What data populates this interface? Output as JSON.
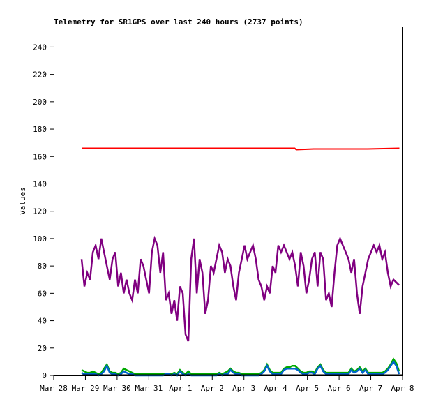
{
  "chart_data": {
    "type": "line",
    "title": "Telemetry for SR1GPS over last 240 hours (2737 points)",
    "xlabel": "",
    "ylabel": "Values",
    "ylim": [
      0,
      255
    ],
    "xlim_days": [
      0,
      11
    ],
    "x_unit": "days since Mar 28 00:00",
    "x_ticks": [
      {
        "day": 0,
        "label": "Mar 28"
      },
      {
        "day": 1,
        "label": "Mar 29"
      },
      {
        "day": 2,
        "label": "Mar 30"
      },
      {
        "day": 3,
        "label": "Mar 31"
      },
      {
        "day": 4,
        "label": "Apr 1"
      },
      {
        "day": 5,
        "label": "Apr 2"
      },
      {
        "day": 6,
        "label": "Apr 3"
      },
      {
        "day": 7,
        "label": "Apr 4"
      },
      {
        "day": 8,
        "label": "Apr 5"
      },
      {
        "day": 9,
        "label": "Apr 6"
      },
      {
        "day": 10,
        "label": "Apr 7"
      },
      {
        "day": 11,
        "label": "Apr 8"
      }
    ],
    "y_ticks": [
      0,
      20,
      40,
      60,
      80,
      100,
      120,
      140,
      160,
      180,
      200,
      220,
      240
    ],
    "grid": false,
    "sample_start_day": 0.88,
    "sample_step_day": 0.0886,
    "series": [
      {
        "name": "red",
        "color": "#ff0000",
        "points": [
          [
            0.88,
            166
          ],
          [
            7.6,
            166
          ],
          [
            7.65,
            165
          ],
          [
            8.2,
            165.5
          ],
          [
            9.9,
            165.5
          ],
          [
            10.9,
            166
          ]
        ]
      },
      {
        "name": "purple",
        "color": "#800080",
        "values": [
          85,
          65,
          75,
          70,
          90,
          95,
          85,
          100,
          90,
          80,
          70,
          85,
          90,
          65,
          75,
          60,
          70,
          60,
          55,
          70,
          60,
          85,
          80,
          70,
          60,
          90,
          100,
          95,
          75,
          90,
          55,
          60,
          45,
          55,
          40,
          65,
          60,
          30,
          25,
          85,
          100,
          60,
          85,
          75,
          45,
          55,
          80,
          75,
          85,
          95,
          90,
          75,
          85,
          80,
          65,
          55,
          75,
          85,
          95,
          85,
          90,
          95,
          85,
          70,
          65,
          55,
          65,
          60,
          80,
          75,
          95,
          90,
          95,
          90,
          85,
          90,
          80,
          65,
          90,
          80,
          60,
          70,
          85,
          90,
          65,
          90,
          85,
          55,
          60,
          50,
          75,
          95,
          100,
          95,
          90,
          85,
          75,
          85,
          60,
          45,
          65,
          75,
          85,
          90,
          95,
          90,
          95,
          85,
          90,
          75,
          65,
          70,
          68,
          66
        ]
      },
      {
        "name": "green",
        "color": "#00aa00",
        "values": [
          4,
          3,
          2,
          2,
          3,
          2,
          1,
          2,
          5,
          8,
          3,
          2,
          2,
          1,
          2,
          5,
          4,
          3,
          2,
          1,
          1,
          1,
          1,
          1,
          1,
          1,
          1,
          1,
          1,
          1,
          1,
          1,
          1,
          2,
          1,
          4,
          2,
          1,
          3,
          1,
          1,
          1,
          1,
          1,
          1,
          1,
          1,
          1,
          1,
          2,
          1,
          2,
          3,
          5,
          3,
          2,
          2,
          1,
          1,
          1,
          1,
          1,
          1,
          1,
          2,
          4,
          8,
          4,
          2,
          2,
          2,
          2,
          5,
          6,
          6,
          7,
          7,
          5,
          3,
          2,
          2,
          3,
          3,
          2,
          6,
          8,
          4,
          2,
          2,
          2,
          2,
          2,
          2,
          2,
          2,
          2,
          5,
          3,
          4,
          6,
          3,
          5,
          2,
          2,
          2,
          2,
          2,
          2,
          3,
          5,
          8,
          12,
          9,
          3
        ]
      },
      {
        "name": "blue",
        "color": "#0066cc",
        "values": [
          2,
          1,
          1,
          1,
          1,
          1,
          0,
          1,
          3,
          7,
          2,
          1,
          1,
          0,
          1,
          3,
          2,
          1,
          1,
          0,
          0,
          0,
          0,
          0,
          0,
          0,
          0,
          0,
          0,
          0,
          1,
          1,
          0,
          1,
          0,
          3,
          1,
          0,
          1,
          0,
          0,
          0,
          0,
          0,
          0,
          0,
          0,
          0,
          0,
          1,
          0,
          1,
          1,
          4,
          2,
          1,
          1,
          0,
          0,
          0,
          0,
          0,
          0,
          0,
          1,
          3,
          7,
          3,
          1,
          1,
          1,
          1,
          4,
          5,
          5,
          5,
          5,
          4,
          2,
          1,
          1,
          2,
          2,
          1,
          5,
          7,
          3,
          1,
          1,
          1,
          1,
          1,
          1,
          1,
          1,
          1,
          4,
          2,
          3,
          5,
          2,
          4,
          1,
          1,
          1,
          1,
          1,
          1,
          2,
          4,
          7,
          10,
          7,
          1
        ]
      }
    ]
  }
}
